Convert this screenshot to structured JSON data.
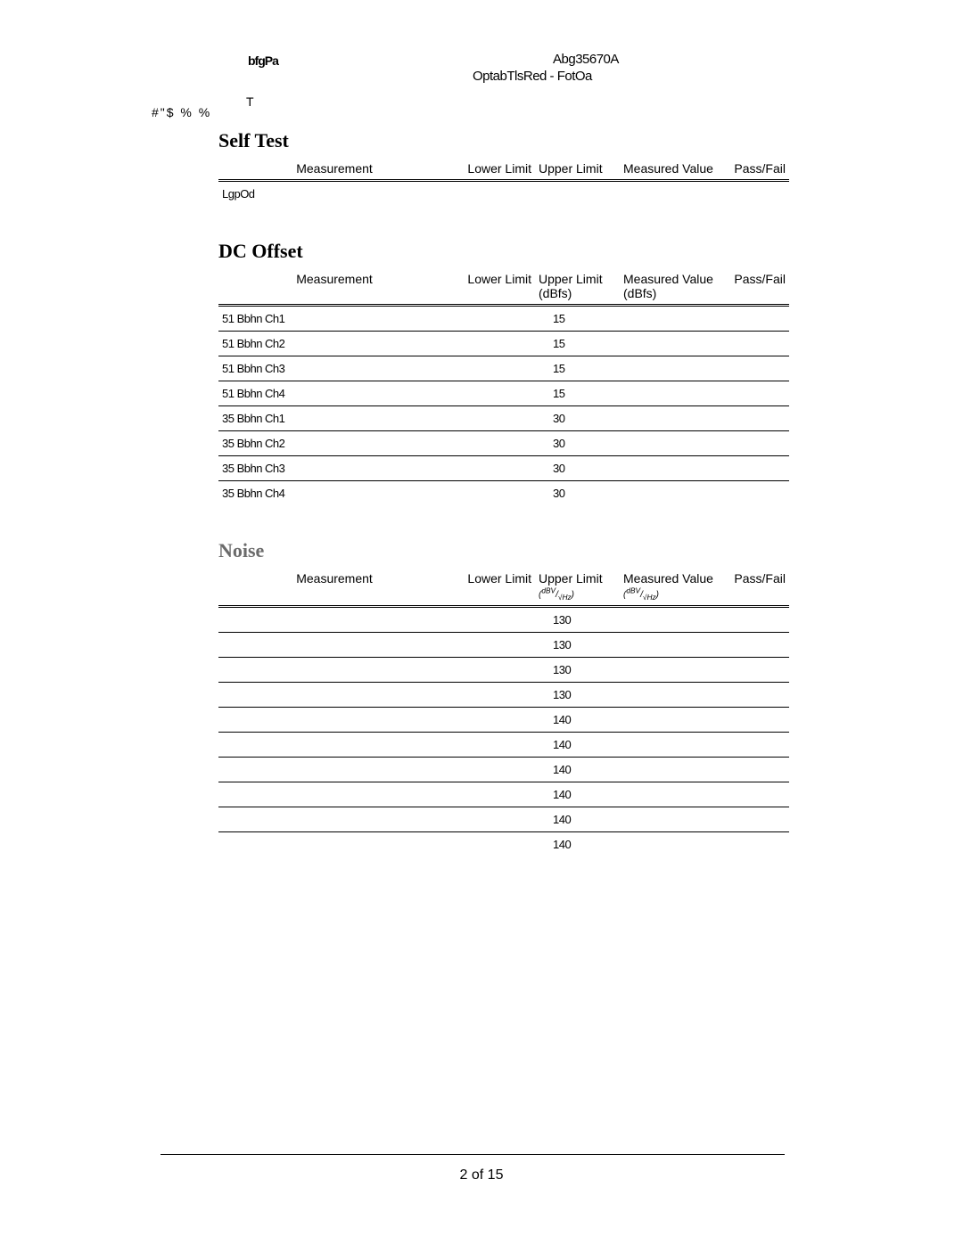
{
  "header": {
    "left_artifact_1": "bfgPa",
    "left_artifact_2": "T",
    "far_left_artifact": "#\"$ % %",
    "right_line_1": "Abg35670A",
    "right_line_2": "OptabTlsRed - FotOa"
  },
  "sections": {
    "selfTest": {
      "title": "Self Test",
      "columns": [
        "Measurement",
        "Lower Limit",
        "Upper Limit",
        "Measured Value",
        "Pass/Fail"
      ],
      "rows": [
        {
          "measurement": "LgpOd",
          "lower": "",
          "upper": "",
          "measured": "",
          "pf": ""
        }
      ]
    },
    "dcOffset": {
      "title": "DC Offset",
      "columns": [
        "Measurement",
        "Lower Limit",
        "Upper Limit",
        "Measured Value",
        "Pass/Fail"
      ],
      "ul_unit": "(dBfs)",
      "mv_unit": "(dBfs)",
      "rows": [
        {
          "measurement": "51  Bbhn Ch1",
          "upper": "15"
        },
        {
          "measurement": "51  Bbhn Ch2",
          "upper": "15"
        },
        {
          "measurement": "51  Bbhn Ch3",
          "upper": "15"
        },
        {
          "measurement": "51  Bbhn Ch4",
          "upper": "15"
        },
        {
          "measurement": "35  Bbhn Ch1",
          "upper": "30"
        },
        {
          "measurement": "35  Bbhn Ch2",
          "upper": "30"
        },
        {
          "measurement": "35  Bbhn Ch3",
          "upper": "30"
        },
        {
          "measurement": "35  Bbhn Ch4",
          "upper": "30"
        }
      ]
    },
    "noise": {
      "title": "Noise",
      "columns": [
        "Measurement",
        "Lower Limit",
        "Upper Limit",
        "Measured Value",
        "Pass/Fail"
      ],
      "unit_html": "(ᵈᴮⱽ⁄√Hz)",
      "rows": [
        {
          "upper": "130"
        },
        {
          "upper": "130"
        },
        {
          "upper": "130"
        },
        {
          "upper": "130"
        },
        {
          "upper": "140"
        },
        {
          "upper": "140"
        },
        {
          "upper": "140"
        },
        {
          "upper": "140"
        },
        {
          "upper": "140"
        },
        {
          "upper": "140"
        }
      ]
    }
  },
  "footer": {
    "page_label": "2 of 15"
  }
}
